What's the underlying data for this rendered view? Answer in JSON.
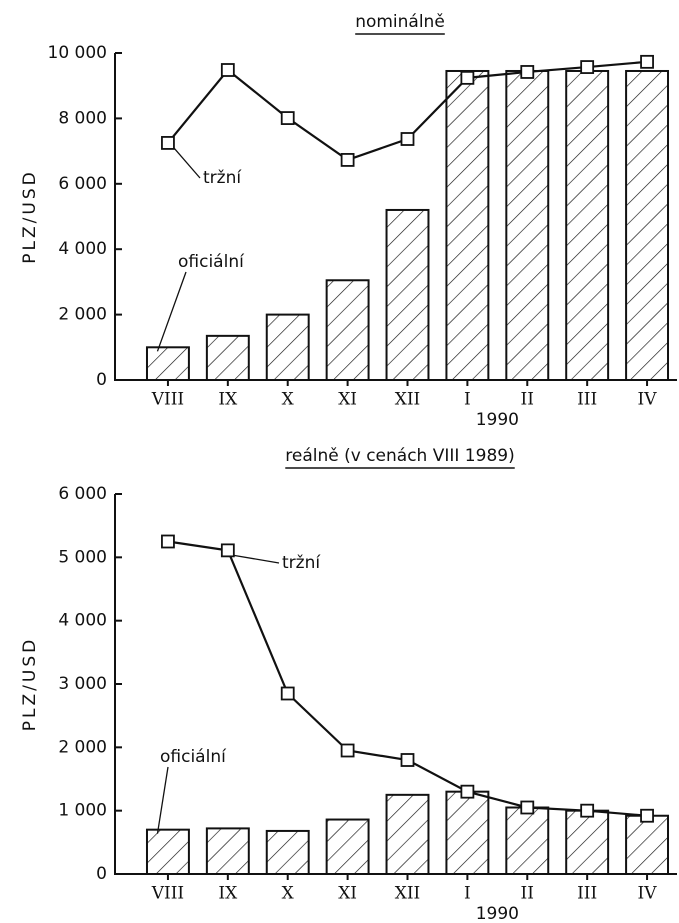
{
  "chart_data": [
    {
      "type": "bar_line",
      "title": "nominálně",
      "y_label": "PLZ/USD",
      "categories": [
        "VIII",
        "IX",
        "X",
        "XI",
        "XII",
        "I",
        "II",
        "III",
        "IV"
      ],
      "annotation": "1990",
      "series": [
        {
          "name": "oficiální",
          "kind": "bar",
          "color": "#111111",
          "values": [
            1000,
            1350,
            2000,
            3050,
            5200,
            9450,
            9450,
            9450,
            9450
          ]
        },
        {
          "name": "tržní",
          "kind": "line",
          "color": "#111111",
          "values": [
            7250,
            9480,
            8010,
            6730,
            7370,
            9240,
            9420,
            9570,
            9730
          ]
        }
      ],
      "ylim": [
        0,
        10000
      ],
      "yticks": [
        0,
        {
          "value": 2000,
          "label": "2 000"
        },
        {
          "value": 4000,
          "label": "4 000"
        },
        {
          "value": 6000,
          "label": "6 000"
        },
        {
          "value": 8000,
          "label": "8 000"
        },
        {
          "value": 10000,
          "label": "10 000"
        }
      ],
      "grid": false
    },
    {
      "type": "bar_line",
      "title": "reálně (v cenách VIII 1989)",
      "y_label": "PLZ/USD",
      "categories": [
        "VIII",
        "IX",
        "X",
        "XI",
        "XII",
        "I",
        "II",
        "III",
        "IV"
      ],
      "annotation": "1990",
      "series": [
        {
          "name": "oficiální",
          "kind": "bar",
          "color": "#111111",
          "values": [
            700,
            720,
            680,
            860,
            1250,
            1300,
            1050,
            1000,
            920
          ]
        },
        {
          "name": "tržní",
          "kind": "line",
          "color": "#111111",
          "values": [
            5250,
            5110,
            2850,
            1950,
            1800,
            1300,
            1050,
            1000,
            920
          ]
        }
      ],
      "ylim": [
        0,
        6000
      ],
      "yticks": [
        0,
        {
          "value": 1000,
          "label": "1 000"
        },
        {
          "value": 2000,
          "label": "2 000"
        },
        {
          "value": 3000,
          "label": "3 000"
        },
        {
          "value": 4000,
          "label": "4 000"
        },
        {
          "value": 5000,
          "label": "5 000"
        },
        {
          "value": 6000,
          "label": "6 000"
        }
      ],
      "grid": false
    }
  ]
}
